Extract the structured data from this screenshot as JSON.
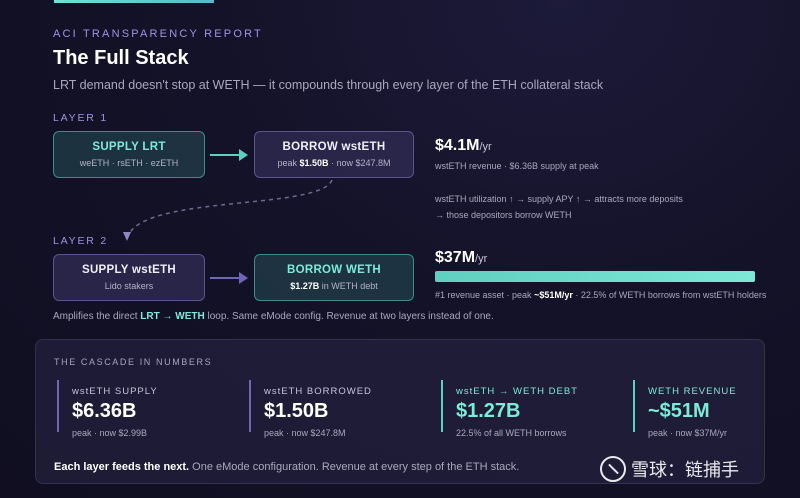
{
  "header": {
    "kicker": "ACI TRANSPARENCY REPORT",
    "title": "The Full Stack",
    "subtitle": "LRT demand doesn't stop at WETH — it compounds through every layer of the ETH collateral stack"
  },
  "layer1": {
    "label": "LAYER 1",
    "supply_box": {
      "title": "SUPPLY LRT",
      "sub": "weETH · rsETH · ezETH"
    },
    "borrow_box": {
      "title": "BORROW wstETH",
      "sub_prefix": "peak ",
      "sub_peak": "$1.50B",
      "sub_suffix": " · now $247.8M"
    },
    "revenue": {
      "value": "$4.1M",
      "unit": "/yr",
      "note": "wstETH revenue · $6.36B supply at peak"
    },
    "explain_line1": "wstETH utilization ↑ → supply APY ↑ → attracts more deposits",
    "explain_line2": "→ those depositors borrow WETH"
  },
  "layer2": {
    "label": "LAYER 2",
    "supply_box": {
      "title": "SUPPLY wstETH",
      "sub": "Lido stakers"
    },
    "borrow_box": {
      "title": "BORROW WETH",
      "sub_amount": "$1.27B",
      "sub_suffix": " in WETH debt"
    },
    "revenue": {
      "value": "$37M",
      "unit": "/yr",
      "note_prefix": "#1 revenue asset · peak ",
      "note_peak": "~$51M/yr",
      "note_suffix": " · 22.5% of WETH borrows from wstETH holders"
    }
  },
  "amplifies": {
    "prefix": "Amplifies the direct ",
    "highlight": "LRT → WETH",
    "suffix": " loop. Same eMode config. Revenue at two layers instead of one."
  },
  "cascade": {
    "title": "THE CASCADE IN NUMBERS",
    "stats": [
      {
        "label": "wstETH SUPPLY",
        "value": "$6.36B",
        "sub": "peak · now $2.99B"
      },
      {
        "label": "wstETH BORROWED",
        "value": "$1.50B",
        "sub": "peak · now $247.8M"
      },
      {
        "label": "wstETH → WETH DEBT",
        "value": "$1.27B",
        "sub": "22.5% of all WETH borrows"
      },
      {
        "label": "WETH REVENUE",
        "value": "~$51M",
        "sub": "peak · now $37M/yr"
      }
    ],
    "footer_bold": "Each layer feeds the next.",
    "footer_rest": " One eMode configuration. Revenue at every step of the ETH stack."
  },
  "watermark": {
    "text": "雪球：链捕手"
  },
  "colors": {
    "accent_teal": "#7cecd9",
    "accent_purple": "#9f93e6",
    "background": "#141228"
  },
  "icons": {
    "watermark_logo": "snowball-logo"
  }
}
